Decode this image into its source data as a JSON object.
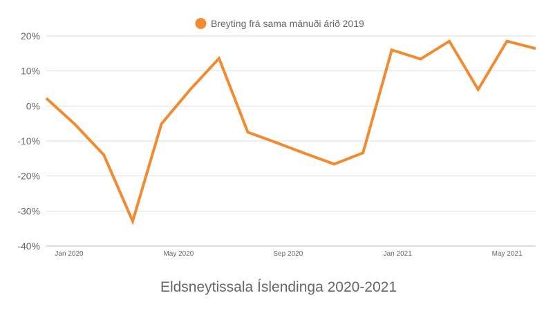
{
  "chart_data": {
    "type": "line",
    "title": "Eldsneytissala Íslendinga 2020-2021",
    "legend": {
      "position": "top",
      "entries": [
        "Breyting frá sama mánuði árið 2019"
      ]
    },
    "series": [
      {
        "name": "Breyting frá sama mánuði árið 2019",
        "color": "#f28a30",
        "x": [
          "2020-01",
          "2020-02",
          "2020-03",
          "2020-04",
          "2020-05",
          "2020-06",
          "2020-07",
          "2020-08",
          "2020-09",
          "2020-10",
          "2020-11",
          "2020-12",
          "2021-01",
          "2021-02",
          "2021-03",
          "2021-04",
          "2021-05",
          "2021-06"
        ],
        "values": [
          2.2,
          -5.3,
          -14.0,
          -32.9,
          -5.1,
          4.7,
          13.6,
          -7.5,
          -10.5,
          -13.6,
          -16.6,
          -13.4,
          16.0,
          13.4,
          18.5,
          4.7,
          18.5,
          16.4
        ]
      }
    ],
    "ylim": [
      -40,
      20
    ],
    "yticks": [
      20,
      10,
      0,
      -10,
      -20,
      -30,
      -40
    ],
    "ytick_labels": [
      "20%",
      "10%",
      "0%",
      "-10%",
      "-20%",
      "-30%",
      "-40%"
    ],
    "xtick_labels": [
      {
        "label": "Jan 2020",
        "index": 0
      },
      {
        "label": "May 2020",
        "index": 4
      },
      {
        "label": "Sep 2020",
        "index": 8
      },
      {
        "label": "Jan 2021",
        "index": 12
      },
      {
        "label": "May 2021",
        "index": 16
      }
    ],
    "grid": true,
    "xlabel": "",
    "ylabel": ""
  }
}
